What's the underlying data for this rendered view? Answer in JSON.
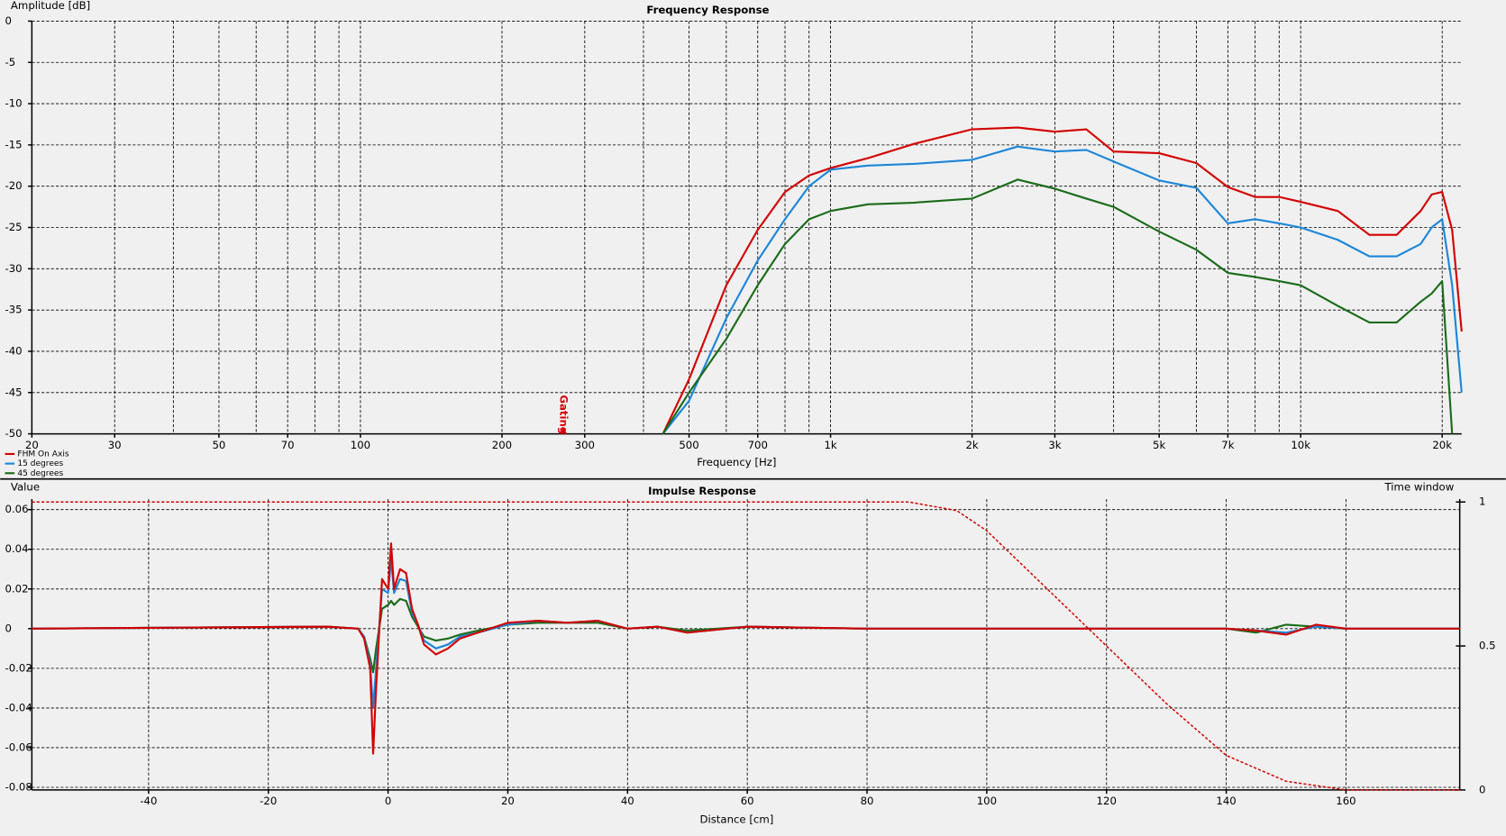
{
  "chart_data": [
    {
      "type": "line",
      "title": "Frequency Response",
      "xlabel": "Frequency [Hz]",
      "ylabel": "Amplitude [dB]",
      "xscale": "log",
      "grid": true,
      "legend": "lower left",
      "xlim": [
        20,
        22000
      ],
      "ylim": [
        -50,
        0
      ],
      "xticks": [
        20,
        30,
        50,
        70,
        100,
        200,
        300,
        500,
        700,
        {
          "value": 1000,
          "label": "1k"
        },
        {
          "value": 2000,
          "label": "2k"
        },
        {
          "value": 3000,
          "label": "3k"
        },
        {
          "value": 5000,
          "label": "5k"
        },
        {
          "value": 7000,
          "label": "7k"
        },
        {
          "value": 10000,
          "label": "10k"
        },
        {
          "value": 20000,
          "label": "20k"
        }
      ],
      "minor_xticks": [
        40,
        60,
        80,
        90,
        400,
        600,
        800,
        900,
        4000,
        6000,
        8000,
        9000
      ],
      "yticks": [
        0,
        -5,
        -10,
        -15,
        -20,
        -25,
        -30,
        -35,
        -40,
        -45,
        -50
      ],
      "annotations": [
        {
          "text": "Gating",
          "x": 270
        }
      ],
      "x": [
        440,
        500,
        600,
        700,
        800,
        900,
        1000,
        1200,
        1500,
        2000,
        2500,
        3000,
        3500,
        4000,
        5000,
        6000,
        7000,
        8000,
        9000,
        10000,
        12000,
        14000,
        16000,
        18000,
        19000,
        20000,
        21000,
        22000
      ],
      "series": [
        {
          "name": "FHM On Axis",
          "color": "#d40000",
          "values": [
            -50,
            -43.4,
            -32,
            -25.3,
            -20.7,
            -18.7,
            -17.8,
            -16.6,
            -14.9,
            -13.1,
            -12.9,
            -13.4,
            -13.1,
            -15.8,
            -16,
            -17.2,
            -20.1,
            -21.3,
            -21.3,
            -21.9,
            -23,
            -25.9,
            -25.9,
            -23,
            -21,
            -20.7,
            -25.3,
            -37.6
          ]
        },
        {
          "name": "15 degrees",
          "color": "#1c86d8",
          "values": [
            -50,
            -46,
            -36,
            -29,
            -24,
            -20,
            -18,
            -17.5,
            -17.3,
            -16.8,
            -15.2,
            -15.8,
            -15.6,
            -17,
            -19.3,
            -20.2,
            -24.5,
            -24,
            -24.5,
            -25,
            -26.5,
            -28.5,
            -28.5,
            -27,
            -25,
            -24,
            -32,
            -45
          ]
        },
        {
          "name": "45 degrees",
          "color": "#1a6b1a",
          "values": [
            -50,
            -45,
            -38.5,
            -32,
            -27,
            -24,
            -23,
            -22.2,
            -22,
            -21.5,
            -19.2,
            -20.3,
            -21.5,
            -22.5,
            -25.5,
            -27.7,
            -30.5,
            -31,
            -31.5,
            -32,
            -34.5,
            -36.5,
            -36.5,
            -34,
            -33,
            -31.5,
            -50,
            null
          ]
        }
      ]
    },
    {
      "type": "line",
      "title": "Impulse Response",
      "xlabel": "Distance [cm]",
      "ylabel": "Value",
      "y2label": "Time window",
      "grid": true,
      "xlim": [
        -59.5,
        179
      ],
      "ylim": [
        -0.0813,
        0.0653
      ],
      "y2lim": [
        0,
        1.01
      ],
      "xticks": [
        -40,
        -20,
        0,
        20,
        40,
        60,
        80,
        100,
        120,
        140,
        160
      ],
      "yticks": [
        0.06,
        0.04,
        0.02,
        0,
        -0.02,
        -0.04,
        -0.06,
        -0.08
      ],
      "y2ticks": [
        1,
        0.5,
        0
      ],
      "x": [
        -59.5,
        -10,
        -5,
        -4,
        -3,
        -2.5,
        -2,
        -1,
        0,
        0.5,
        1,
        2,
        3,
        4,
        5,
        6,
        8,
        10,
        12,
        15,
        20,
        25,
        30,
        35,
        40,
        45,
        50,
        60,
        80,
        100,
        140,
        145,
        150,
        155,
        160,
        179
      ],
      "series": [
        {
          "color": "#1a6b1a",
          "values": [
            0,
            0.001,
            0,
            -0.004,
            -0.015,
            -0.022,
            -0.01,
            0.01,
            0.012,
            0.014,
            0.012,
            0.015,
            0.014,
            0.006,
            0.001,
            -0.004,
            -0.006,
            -0.005,
            -0.003,
            -0.001,
            0.002,
            0.003,
            0.003,
            0.003,
            0,
            0.001,
            -0.001,
            0.001,
            0,
            0,
            0,
            -0.002,
            0.002,
            0.001,
            0,
            0
          ]
        },
        {
          "color": "#1c86d8",
          "values": [
            0,
            0.001,
            0,
            -0.004,
            -0.018,
            -0.04,
            -0.02,
            0.02,
            0.018,
            0.035,
            0.018,
            0.025,
            0.024,
            0.008,
            0.002,
            -0.006,
            -0.01,
            -0.008,
            -0.004,
            -0.002,
            0.002,
            0.004,
            0.003,
            0.004,
            0,
            0.001,
            -0.002,
            0.001,
            0,
            0,
            0,
            -0.001,
            -0.002,
            0.001,
            0,
            0
          ]
        },
        {
          "color": "#d40000",
          "values": [
            0,
            0.001,
            0,
            -0.005,
            -0.02,
            -0.063,
            -0.03,
            0.025,
            0.02,
            0.043,
            0.02,
            0.03,
            0.028,
            0.01,
            0.002,
            -0.008,
            -0.013,
            -0.01,
            -0.005,
            -0.002,
            0.003,
            0.004,
            0.003,
            0.004,
            0,
            0.001,
            -0.002,
            0.001,
            0,
            0,
            0,
            -0.001,
            -0.003,
            0.002,
            0,
            0
          ]
        },
        {
          "color": "#d40000",
          "axis": "y2",
          "style": "dashed",
          "x": [
            -59.5,
            87,
            95,
            100,
            110,
            120,
            130,
            140,
            150,
            160,
            179
          ],
          "values": [
            1,
            1,
            0.97,
            0.9,
            0.7,
            0.5,
            0.3,
            0.12,
            0.03,
            0,
            0
          ]
        }
      ]
    }
  ]
}
